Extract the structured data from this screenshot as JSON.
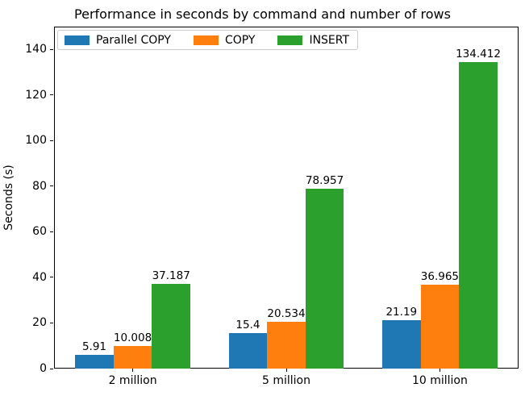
{
  "chart_data": {
    "type": "bar",
    "title": "Performance in seconds by command and number of rows",
    "xlabel": "",
    "ylabel": "Seconds (s)",
    "categories": [
      "2 million",
      "5 million",
      "10 million"
    ],
    "series": [
      {
        "name": "Parallel COPY",
        "color": "#1f77b4",
        "values": [
          5.91,
          15.4,
          21.19
        ],
        "labels": [
          "5.91",
          "15.4",
          "21.19"
        ]
      },
      {
        "name": "COPY",
        "color": "#ff7f0e",
        "values": [
          10.008,
          20.534,
          36.965
        ],
        "labels": [
          "10.008",
          "20.534",
          "36.965"
        ]
      },
      {
        "name": "INSERT",
        "color": "#2ca02c",
        "values": [
          37.187,
          78.957,
          134.412
        ],
        "labels": [
          "37.187",
          "78.957",
          "134.412"
        ]
      }
    ],
    "ylim": [
      0,
      150
    ],
    "yticks": [
      0,
      20,
      40,
      60,
      80,
      100,
      120,
      140
    ],
    "grid": false,
    "legend_position": "upper left",
    "legend_columns": 3,
    "axis_color": "#000000",
    "legend_border_color": "#cccccc",
    "background_color": "#ffffff"
  }
}
